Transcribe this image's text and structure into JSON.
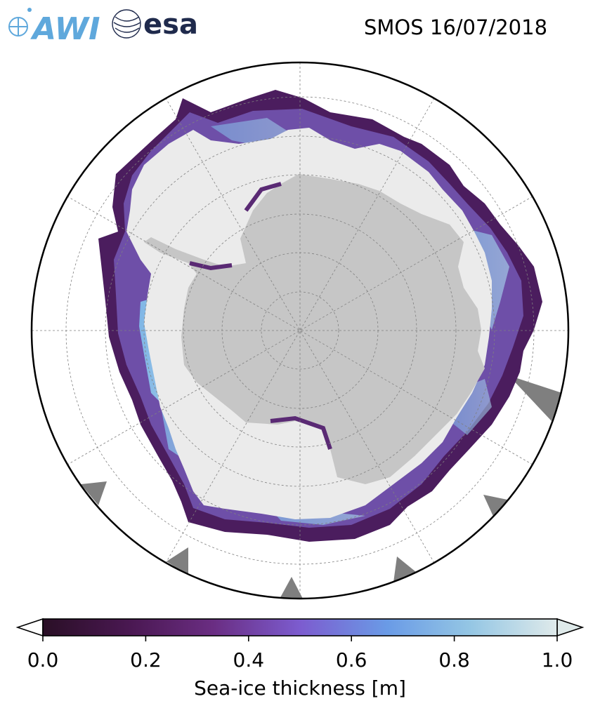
{
  "header": {
    "title": "SMOS 16/07/2018",
    "logo_awi_text": "AWI",
    "logo_esa_text": "esa"
  },
  "map": {
    "projection": "south-polar-stereographic",
    "colors": {
      "land": "#c6c6c6",
      "thick_ice": "#ebebeb",
      "ice_edge": "#4b1d5e",
      "mid_ice": "#6e4fa8",
      "blue_ice": "#7fb6e6",
      "missing_data": "#7f7f7f",
      "boundary": "#000000",
      "gridline": "#808080"
    }
  },
  "colorbar": {
    "label": "Sea-ice thickness [m]",
    "ticks": [
      "0.0",
      "0.2",
      "0.4",
      "0.6",
      "0.8",
      "1.0"
    ],
    "tick_values": [
      0.0,
      0.2,
      0.4,
      0.6,
      0.8,
      1.0
    ],
    "min": 0.0,
    "max": 1.0,
    "extend": "both",
    "colormap": [
      "#2a0f26",
      "#4a1852",
      "#6a2d82",
      "#7c5ccf",
      "#6a9be6",
      "#94c6e4",
      "#dfeaea"
    ]
  }
}
